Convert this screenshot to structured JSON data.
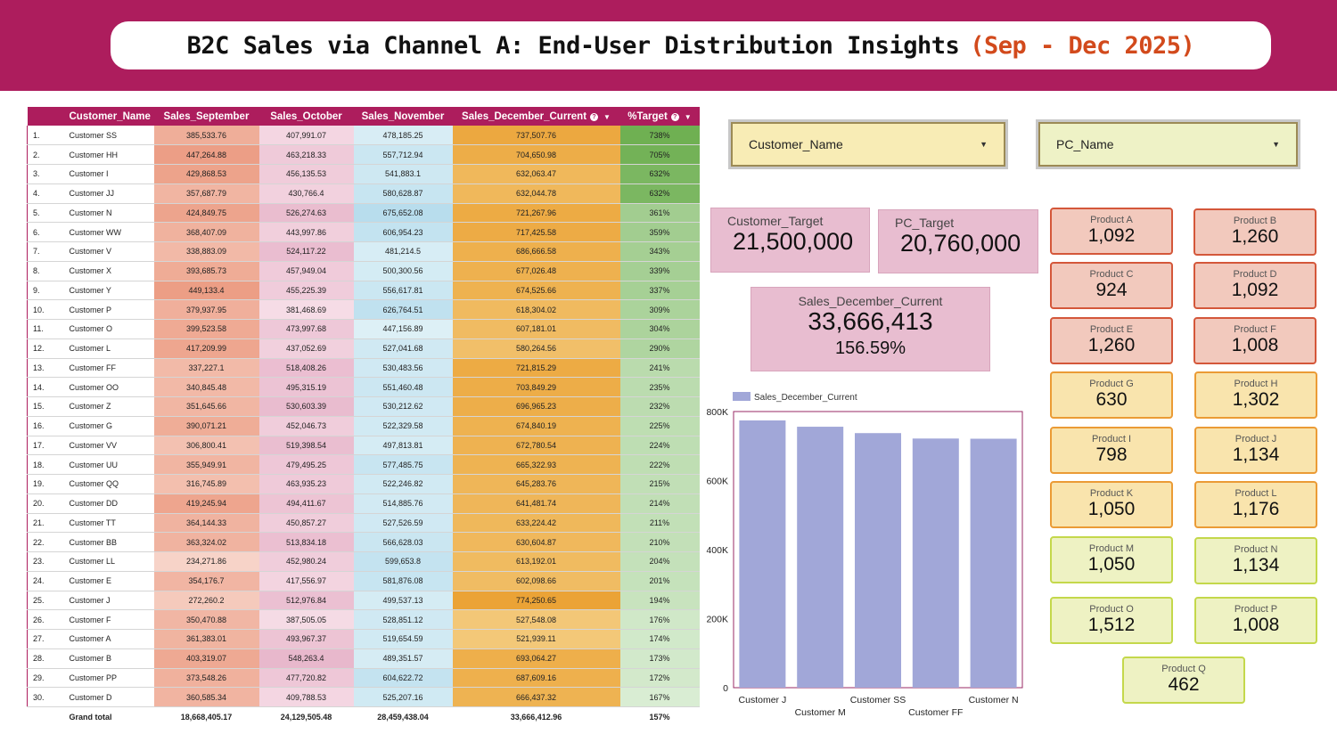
{
  "title": {
    "main": "B2C Sales via Channel A: End-User Distribution Insights",
    "accent": "(Sep - Dec 2025)"
  },
  "table": {
    "headers": [
      "Customer_Name",
      "Sales_September",
      "Sales_October",
      "Sales_November",
      "Sales_December_Current",
      "%Target"
    ],
    "rows": [
      [
        "1.",
        "Customer SS",
        "385,533.76",
        "407,991.07",
        "478,185.25",
        "737,507.76",
        "738%"
      ],
      [
        "2.",
        "Customer HH",
        "447,264.88",
        "463,218.33",
        "557,712.94",
        "704,650.98",
        "705%"
      ],
      [
        "3.",
        "Customer I",
        "429,868.53",
        "456,135.53",
        "541,883.1",
        "632,063.47",
        "632%"
      ],
      [
        "4.",
        "Customer JJ",
        "357,687.79",
        "430,766.4",
        "580,628.87",
        "632,044.78",
        "632%"
      ],
      [
        "5.",
        "Customer N",
        "424,849.75",
        "526,274.63",
        "675,652.08",
        "721,267.96",
        "361%"
      ],
      [
        "6.",
        "Customer WW",
        "368,407.09",
        "443,997.86",
        "606,954.23",
        "717,425.58",
        "359%"
      ],
      [
        "7.",
        "Customer V",
        "338,883.09",
        "524,117.22",
        "481,214.5",
        "686,666.58",
        "343%"
      ],
      [
        "8.",
        "Customer X",
        "393,685.73",
        "457,949.04",
        "500,300.56",
        "677,026.48",
        "339%"
      ],
      [
        "9.",
        "Customer Y",
        "449,133.4",
        "455,225.39",
        "556,617.81",
        "674,525.66",
        "337%"
      ],
      [
        "10.",
        "Customer P",
        "379,937.95",
        "381,468.69",
        "626,764.51",
        "618,304.02",
        "309%"
      ],
      [
        "11.",
        "Customer O",
        "399,523.58",
        "473,997.68",
        "447,156.89",
        "607,181.01",
        "304%"
      ],
      [
        "12.",
        "Customer L",
        "417,209.99",
        "437,052.69",
        "527,041.68",
        "580,264.56",
        "290%"
      ],
      [
        "13.",
        "Customer FF",
        "337,227.1",
        "518,408.26",
        "530,483.56",
        "721,815.29",
        "241%"
      ],
      [
        "14.",
        "Customer OO",
        "340,845.48",
        "495,315.19",
        "551,460.48",
        "703,849.29",
        "235%"
      ],
      [
        "15.",
        "Customer Z",
        "351,645.66",
        "530,603.39",
        "530,212.62",
        "696,965.23",
        "232%"
      ],
      [
        "16.",
        "Customer G",
        "390,071.21",
        "452,046.73",
        "522,329.58",
        "674,840.19",
        "225%"
      ],
      [
        "17.",
        "Customer VV",
        "306,800.41",
        "519,398.54",
        "497,813.81",
        "672,780.54",
        "224%"
      ],
      [
        "18.",
        "Customer UU",
        "355,949.91",
        "479,495.25",
        "577,485.75",
        "665,322.93",
        "222%"
      ],
      [
        "19.",
        "Customer QQ",
        "316,745.89",
        "463,935.23",
        "522,246.82",
        "645,283.76",
        "215%"
      ],
      [
        "20.",
        "Customer DD",
        "419,245.94",
        "494,411.67",
        "514,885.76",
        "641,481.74",
        "214%"
      ],
      [
        "21.",
        "Customer TT",
        "364,144.33",
        "450,857.27",
        "527,526.59",
        "633,224.42",
        "211%"
      ],
      [
        "22.",
        "Customer BB",
        "363,324.02",
        "513,834.18",
        "566,628.03",
        "630,604.87",
        "210%"
      ],
      [
        "23.",
        "Customer LL",
        "234,271.86",
        "452,980.24",
        "599,653.8",
        "613,192.01",
        "204%"
      ],
      [
        "24.",
        "Customer E",
        "354,176.7",
        "417,556.97",
        "581,876.08",
        "602,098.66",
        "201%"
      ],
      [
        "25.",
        "Customer J",
        "272,260.2",
        "512,976.84",
        "499,537.13",
        "774,250.65",
        "194%"
      ],
      [
        "26.",
        "Customer F",
        "350,470.88",
        "387,505.05",
        "528,851.12",
        "527,548.08",
        "176%"
      ],
      [
        "27.",
        "Customer A",
        "361,383.01",
        "493,967.37",
        "519,654.59",
        "521,939.11",
        "174%"
      ],
      [
        "28.",
        "Customer B",
        "403,319.07",
        "548,263.4",
        "489,351.57",
        "693,064.27",
        "173%"
      ],
      [
        "29.",
        "Customer PP",
        "373,548.26",
        "477,720.82",
        "604,622.72",
        "687,609.16",
        "172%"
      ],
      [
        "30.",
        "Customer D",
        "360,585.34",
        "409,788.53",
        "525,207.16",
        "666,437.32",
        "167%"
      ]
    ],
    "total": [
      "Grand total",
      "18,668,405.17",
      "24,129,505.48",
      "28,459,438.04",
      "33,666,412.96",
      "157%"
    ]
  },
  "filters": {
    "customer": "Customer_Name",
    "pc": "PC_Name"
  },
  "kpis": {
    "customer_target": {
      "label": "Customer_Target",
      "value": "21,500,000"
    },
    "pc_target": {
      "label": "PC_Target",
      "value": "20,760,000"
    },
    "december": {
      "label": "Sales_December_Current",
      "value": "33,666,413",
      "pct": "156.59%"
    }
  },
  "products": [
    {
      "label": "Product A",
      "value": "1,092"
    },
    {
      "label": "Product B",
      "value": "1,260"
    },
    {
      "label": "Product C",
      "value": "924"
    },
    {
      "label": "Product D",
      "value": "1,092"
    },
    {
      "label": "Product E",
      "value": "1,260"
    },
    {
      "label": "Product F",
      "value": "1,008"
    },
    {
      "label": "Product G",
      "value": "630"
    },
    {
      "label": "Product H",
      "value": "1,302"
    },
    {
      "label": "Product I",
      "value": "798"
    },
    {
      "label": "Product J",
      "value": "1,134"
    },
    {
      "label": "Product K",
      "value": "1,050"
    },
    {
      "label": "Product L",
      "value": "1,176"
    },
    {
      "label": "Product M",
      "value": "1,050"
    },
    {
      "label": "Product N",
      "value": "1,134"
    },
    {
      "label": "Product O",
      "value": "1,512"
    },
    {
      "label": "Product P",
      "value": "1,008"
    },
    {
      "label": "Product Q",
      "value": "462"
    }
  ],
  "colors": {
    "brand": "#ad1d5d",
    "accent": "#d24a1c",
    "bar": "#a1a7d8"
  },
  "chart_data": {
    "type": "bar",
    "categories": [
      "Customer J",
      "Customer M",
      "Customer SS",
      "Customer FF",
      "Customer N"
    ],
    "series": [
      {
        "name": "Sales_December_Current",
        "values": [
          774250.65,
          756000,
          737507.76,
          721815.29,
          721267.96
        ]
      }
    ],
    "ylim": [
      0,
      800000
    ],
    "yticks": [
      "0",
      "200K",
      "400K",
      "600K",
      "800K"
    ],
    "legend": "top-left",
    "grid": false
  }
}
